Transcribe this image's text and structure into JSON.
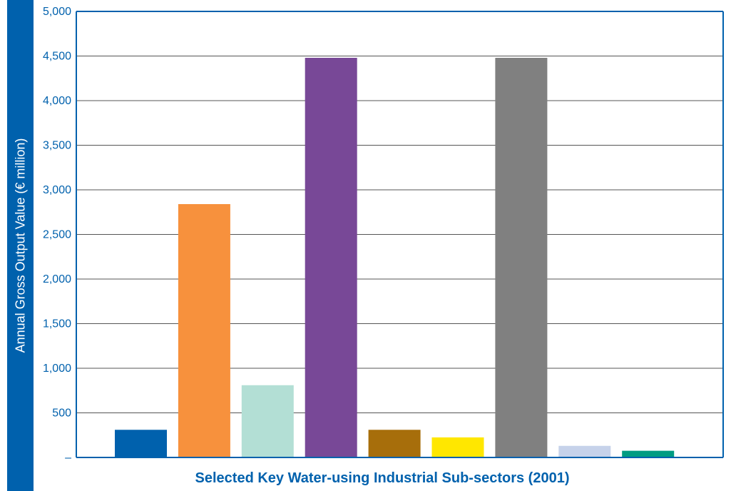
{
  "chart_data": {
    "type": "bar",
    "title": "",
    "xlabel": "Selected Key Water-using Industrial Sub-sectors (2001)",
    "ylabel": "Annual Gross Output Value (€ million)",
    "ylim": [
      0,
      5000
    ],
    "y_ticks": [
      0,
      500,
      1000,
      1500,
      2000,
      2500,
      3000,
      3500,
      4000,
      4500,
      5000
    ],
    "y_tick_labels": [
      "–",
      "500",
      "1,000",
      "1,500",
      "2,000",
      "2,500",
      "3,000",
      "3,500",
      "4,000",
      "4,500",
      "5,000"
    ],
    "grid": true,
    "legend": "none",
    "values": [
      310,
      2840,
      810,
      4480,
      310,
      225,
      4480,
      130,
      75
    ],
    "colors": [
      "#0061ad",
      "#f7913d",
      "#b3dfd5",
      "#784897",
      "#a76e0b",
      "#ffe700",
      "#808080",
      "#c6d2ea",
      "#009c82"
    ]
  },
  "accent_color": "#0061ad"
}
